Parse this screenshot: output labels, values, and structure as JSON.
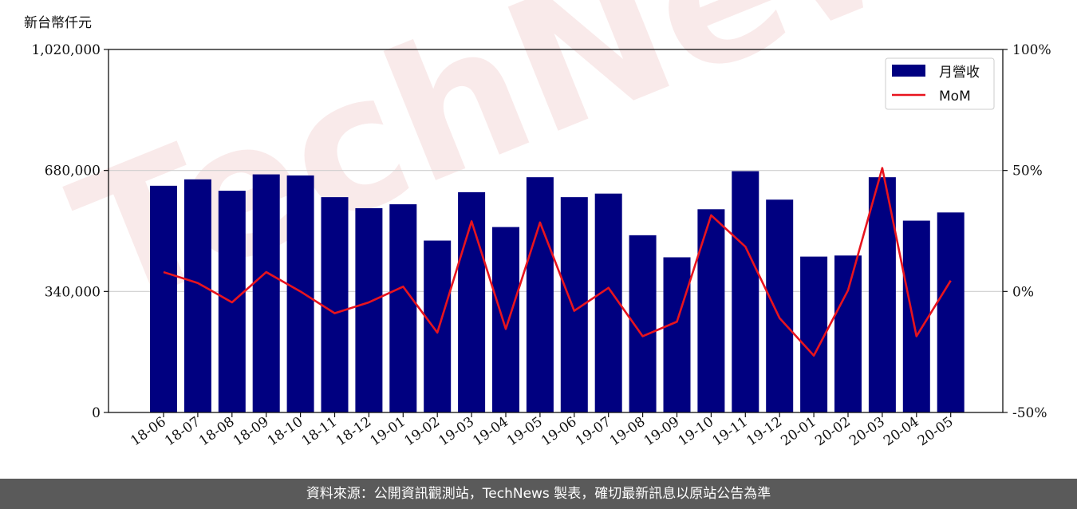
{
  "chart_data": {
    "type": "bar",
    "y_unit_label": "新台幣仟元",
    "categories": [
      "18-06",
      "18-07",
      "18-08",
      "18-09",
      "18-10",
      "18-11",
      "18-12",
      "19-01",
      "19-02",
      "19-03",
      "19-04",
      "19-05",
      "19-06",
      "19-07",
      "19-08",
      "19-09",
      "19-10",
      "19-11",
      "19-12",
      "20-01",
      "20-02",
      "20-03",
      "20-04",
      "20-05"
    ],
    "series": [
      {
        "name": "月營收",
        "axis": "left",
        "type": "bar",
        "color": "#000080",
        "values": [
          637000,
          655000,
          623000,
          669000,
          666000,
          605000,
          574000,
          585000,
          483000,
          619000,
          521000,
          661000,
          605000,
          615000,
          498000,
          436000,
          571000,
          678000,
          598000,
          438000,
          441000,
          661000,
          539000,
          562000
        ]
      },
      {
        "name": "MoM",
        "axis": "right",
        "type": "line",
        "color": "#e8141e",
        "values": [
          8,
          3.5,
          -4.5,
          8,
          0,
          -9,
          -4.5,
          2,
          -17,
          29,
          -15.5,
          28.5,
          -8,
          1.5,
          -18.5,
          -12.5,
          31.5,
          18.5,
          -11,
          -26.5,
          0.5,
          51,
          -18.5,
          4.5
        ]
      }
    ],
    "y_left": {
      "ylim": [
        0,
        1020000
      ],
      "ticks": [
        0,
        340000,
        680000,
        1020000
      ],
      "tick_labels": [
        "0",
        "340,000",
        "680,000",
        "1,020,000"
      ]
    },
    "y_right": {
      "ylim": [
        -50,
        100
      ],
      "ticks": [
        -50,
        0,
        50,
        100
      ],
      "tick_labels": [
        "-50%",
        "0%",
        "50%",
        "100%"
      ]
    },
    "grid": "horizontal",
    "legend_position": "top-right"
  },
  "watermark": "TechNews",
  "footer": {
    "source_text": "資料來源：公開資訊觀測站，TechNews 製表，確切最新訊息以原站公告為準"
  }
}
